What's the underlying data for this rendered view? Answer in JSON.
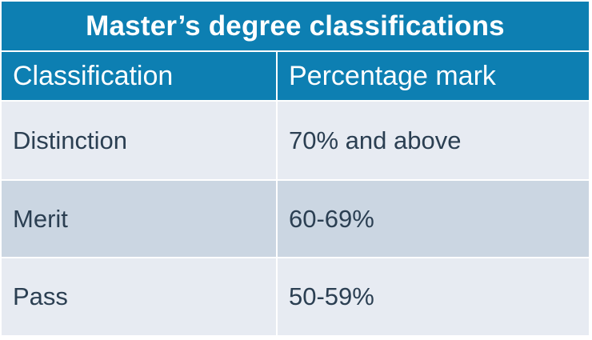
{
  "title": "Master’s degree classifications",
  "headers": [
    "Classification",
    "Percentage mark"
  ],
  "rows": [
    {
      "classification": "Distinction",
      "mark": "70% and above"
    },
    {
      "classification": "Merit",
      "mark": "60-69%"
    },
    {
      "classification": "Pass",
      "mark": "50-59%"
    }
  ],
  "colors": {
    "header_bg": "#0d7fb2",
    "row_light": "#e7ebf2",
    "row_dark": "#cbd6e2",
    "text": "#2b3f52"
  }
}
